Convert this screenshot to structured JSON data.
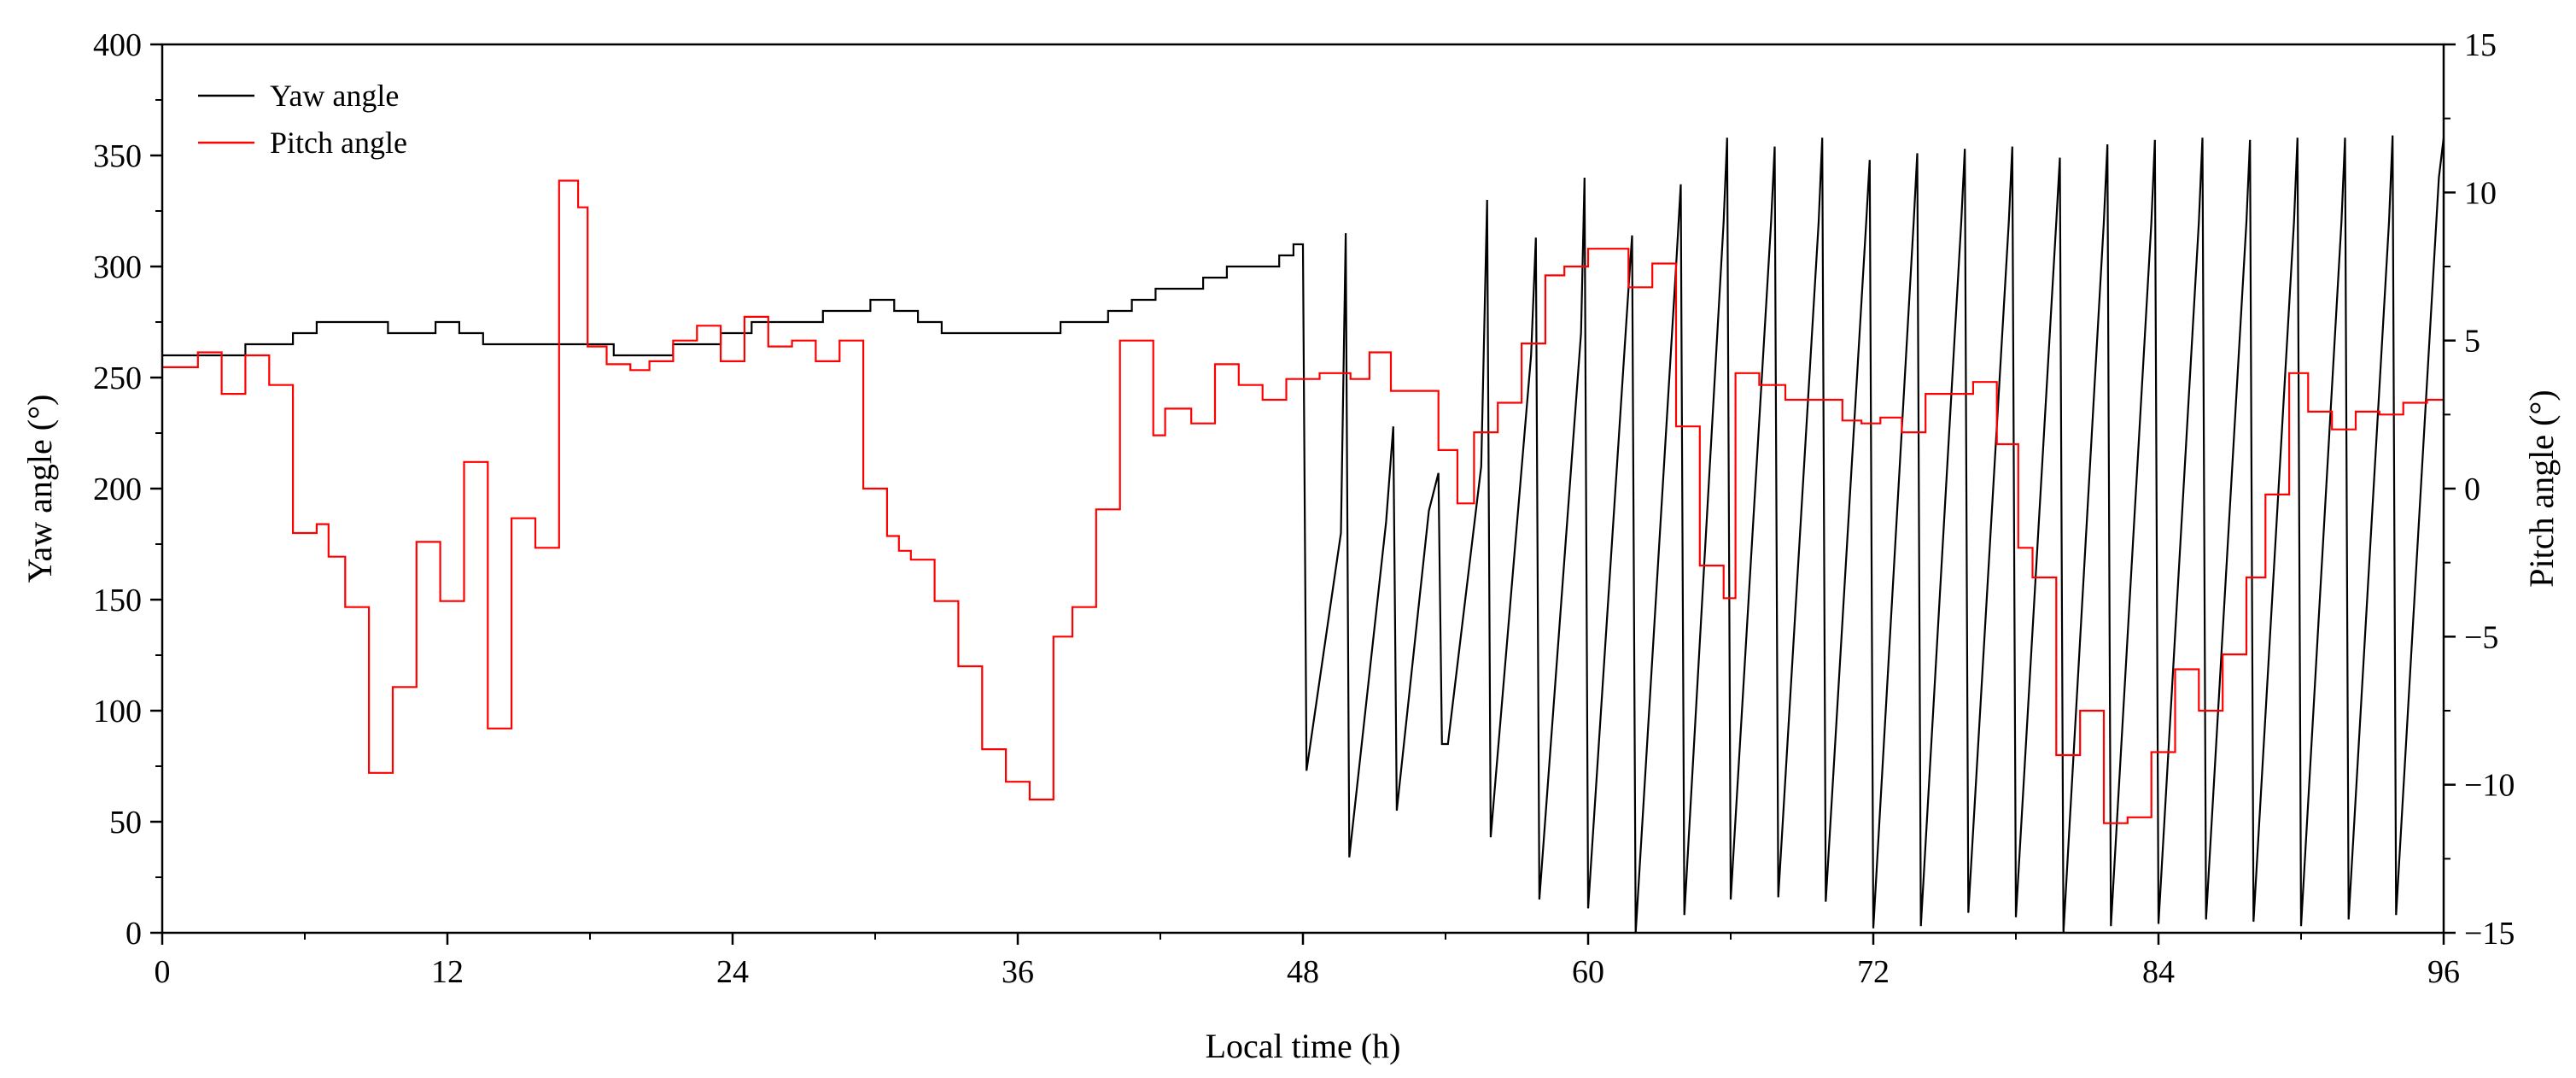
{
  "chart_data": {
    "type": "line",
    "title": "",
    "xlabel": "Local time (h)",
    "ylabel": "Yaw angle (°)",
    "y2label": "Pitch angle (°)",
    "xlim": [
      0,
      96
    ],
    "ylim": [
      0,
      400
    ],
    "y2lim": [
      -15,
      15
    ],
    "x_ticks": [
      0,
      12,
      24,
      36,
      48,
      60,
      72,
      84,
      96
    ],
    "x_tick_labels": [
      "0",
      "12",
      "24",
      "36",
      "48",
      "60",
      "72",
      "84",
      "96"
    ],
    "y_ticks": [
      0,
      50,
      100,
      150,
      200,
      250,
      300,
      350,
      400
    ],
    "y_tick_labels": [
      "0",
      "50",
      "100",
      "150",
      "200",
      "250",
      "300",
      "350",
      "400"
    ],
    "y2_ticks": [
      -15,
      -10,
      -5,
      0,
      5,
      10,
      15
    ],
    "y2_tick_labels": [
      "−15",
      "−10",
      "−5",
      "0",
      "5",
      "10",
      "15"
    ],
    "grid": false,
    "legend_position": "top-left",
    "series": [
      {
        "name": "Yaw angle",
        "axis": "left",
        "color": "#000000",
        "step": true,
        "points": [
          [
            0,
            260
          ],
          [
            1.5,
            260
          ],
          [
            2.5,
            260
          ],
          [
            3.5,
            265
          ],
          [
            5.5,
            270
          ],
          [
            6.5,
            275
          ],
          [
            9.5,
            270
          ],
          [
            11.5,
            275
          ],
          [
            12.5,
            270
          ],
          [
            13.5,
            265
          ],
          [
            16.5,
            265
          ],
          [
            19.0,
            260
          ],
          [
            21.5,
            265
          ],
          [
            23.5,
            270
          ],
          [
            24.8,
            275
          ],
          [
            27.8,
            280
          ],
          [
            29.8,
            285
          ],
          [
            30.8,
            280
          ],
          [
            31.8,
            275
          ],
          [
            32.8,
            270
          ],
          [
            36.5,
            270
          ],
          [
            37.8,
            275
          ],
          [
            39.8,
            280
          ],
          [
            40.8,
            285
          ],
          [
            41.8,
            290
          ],
          [
            43.8,
            295
          ],
          [
            44.8,
            300
          ],
          [
            47.0,
            305
          ],
          [
            47.6,
            310
          ],
          [
            48.0,
            310
          ],
          [
            48.15,
            73
          ],
          [
            49.6,
            180
          ],
          [
            49.8,
            315
          ],
          [
            49.95,
            34
          ],
          [
            51.5,
            185
          ],
          [
            51.8,
            228
          ],
          [
            51.95,
            55
          ],
          [
            53.3,
            190
          ],
          [
            53.7,
            207
          ],
          [
            53.85,
            85
          ],
          [
            54.1,
            85
          ],
          [
            55.5,
            210
          ],
          [
            55.75,
            330
          ],
          [
            55.9,
            43
          ],
          [
            57.6,
            260
          ],
          [
            57.8,
            313
          ],
          [
            57.95,
            15
          ],
          [
            59.7,
            270
          ],
          [
            59.85,
            340
          ],
          [
            60.0,
            11
          ],
          [
            61.7,
            290
          ],
          [
            61.85,
            314
          ],
          [
            62.0,
            0
          ],
          [
            63.7,
            300
          ],
          [
            63.9,
            337
          ],
          [
            64.05,
            8
          ],
          [
            65.7,
            320
          ],
          [
            65.85,
            358
          ],
          [
            66.0,
            15
          ],
          [
            67.7,
            320
          ],
          [
            67.85,
            354
          ],
          [
            68.0,
            16
          ],
          [
            69.7,
            320
          ],
          [
            69.85,
            358
          ],
          [
            70.0,
            14
          ],
          [
            71.7,
            320
          ],
          [
            71.85,
            348
          ],
          [
            72.0,
            2
          ],
          [
            73.7,
            320
          ],
          [
            73.85,
            351
          ],
          [
            74.0,
            3
          ],
          [
            75.7,
            320
          ],
          [
            75.85,
            353
          ],
          [
            76.0,
            9
          ],
          [
            77.7,
            320
          ],
          [
            77.85,
            354
          ],
          [
            78.0,
            7
          ],
          [
            79.7,
            320
          ],
          [
            79.85,
            349
          ],
          [
            80.0,
            0
          ],
          [
            81.7,
            320
          ],
          [
            81.85,
            355
          ],
          [
            82.0,
            3
          ],
          [
            83.7,
            320
          ],
          [
            83.85,
            357
          ],
          [
            84.0,
            4
          ],
          [
            85.7,
            320
          ],
          [
            85.85,
            358
          ],
          [
            86.0,
            6
          ],
          [
            87.7,
            320
          ],
          [
            87.85,
            357
          ],
          [
            88.0,
            5
          ],
          [
            89.7,
            320
          ],
          [
            89.85,
            358
          ],
          [
            90.0,
            3
          ],
          [
            91.7,
            320
          ],
          [
            91.85,
            358
          ],
          [
            92.0,
            6
          ],
          [
            93.7,
            320
          ],
          [
            93.85,
            359
          ],
          [
            94.0,
            8
          ],
          [
            95.8,
            340
          ],
          [
            96.0,
            358
          ]
        ]
      },
      {
        "name": "Pitch angle",
        "axis": "right",
        "color": "#ff0000",
        "step": true,
        "points": [
          [
            0,
            4.1
          ],
          [
            1.5,
            4.6
          ],
          [
            2.5,
            3.2
          ],
          [
            3.5,
            4.5
          ],
          [
            4.5,
            3.5
          ],
          [
            5.5,
            -1.5
          ],
          [
            6.5,
            -1.2
          ],
          [
            7.0,
            -2.3
          ],
          [
            7.7,
            -4.0
          ],
          [
            8.7,
            -9.6
          ],
          [
            9.7,
            -6.7
          ],
          [
            10.7,
            -1.8
          ],
          [
            11.7,
            -3.8
          ],
          [
            12.7,
            0.9
          ],
          [
            13.7,
            -8.1
          ],
          [
            14.7,
            -1.0
          ],
          [
            15.7,
            -2.0
          ],
          [
            16.7,
            10.4
          ],
          [
            17.5,
            9.5
          ],
          [
            17.9,
            4.8
          ],
          [
            18.7,
            4.2
          ],
          [
            19.7,
            4.0
          ],
          [
            20.5,
            4.3
          ],
          [
            21.5,
            5.0
          ],
          [
            22.5,
            5.5
          ],
          [
            23.5,
            4.3
          ],
          [
            24.5,
            5.8
          ],
          [
            25.5,
            4.8
          ],
          [
            26.5,
            5.0
          ],
          [
            27.5,
            4.3
          ],
          [
            28.5,
            5.0
          ],
          [
            29.5,
            0.0
          ],
          [
            30.5,
            -1.6
          ],
          [
            31.0,
            -2.1
          ],
          [
            31.5,
            -2.4
          ],
          [
            32.5,
            -3.8
          ],
          [
            33.5,
            -6.0
          ],
          [
            34.5,
            -8.8
          ],
          [
            35.5,
            -9.9
          ],
          [
            36.5,
            -10.5
          ],
          [
            37.5,
            -5.0
          ],
          [
            38.3,
            -4.0
          ],
          [
            39.3,
            -0.7
          ],
          [
            40.3,
            5.0
          ],
          [
            41.7,
            1.8
          ],
          [
            42.2,
            2.7
          ],
          [
            43.3,
            2.2
          ],
          [
            44.3,
            4.2
          ],
          [
            45.3,
            3.5
          ],
          [
            46.3,
            3.0
          ],
          [
            47.3,
            3.7
          ],
          [
            48.7,
            3.9
          ],
          [
            50.0,
            3.7
          ],
          [
            50.8,
            4.6
          ],
          [
            51.7,
            3.3
          ],
          [
            53.7,
            1.3
          ],
          [
            54.5,
            -0.5
          ],
          [
            55.2,
            1.9
          ],
          [
            56.2,
            2.9
          ],
          [
            57.2,
            4.9
          ],
          [
            58.2,
            7.2
          ],
          [
            59.0,
            7.5
          ],
          [
            60.0,
            8.1
          ],
          [
            61.7,
            6.8
          ],
          [
            62.7,
            7.6
          ],
          [
            63.7,
            2.1
          ],
          [
            64.7,
            -2.6
          ],
          [
            65.7,
            -3.7
          ],
          [
            66.2,
            3.9
          ],
          [
            67.2,
            3.5
          ],
          [
            68.3,
            3.0
          ],
          [
            70.7,
            2.3
          ],
          [
            71.5,
            2.2
          ],
          [
            72.3,
            2.4
          ],
          [
            73.2,
            1.9
          ],
          [
            74.2,
            3.2
          ],
          [
            76.2,
            3.6
          ],
          [
            77.2,
            1.5
          ],
          [
            78.1,
            -2.0
          ],
          [
            78.7,
            -3.0
          ],
          [
            79.7,
            -9.0
          ],
          [
            80.7,
            -7.5
          ],
          [
            81.7,
            -11.3
          ],
          [
            82.7,
            -11.1
          ],
          [
            83.7,
            -8.9
          ],
          [
            84.7,
            -6.1
          ],
          [
            85.7,
            -7.5
          ],
          [
            86.7,
            -5.6
          ],
          [
            87.7,
            -3.0
          ],
          [
            88.5,
            -0.2
          ],
          [
            89.5,
            3.9
          ],
          [
            90.3,
            2.6
          ],
          [
            91.3,
            2.0
          ],
          [
            92.3,
            2.6
          ],
          [
            93.3,
            2.5
          ],
          [
            94.3,
            2.9
          ],
          [
            95.3,
            3.0
          ],
          [
            96.0,
            3.0
          ]
        ]
      }
    ]
  }
}
